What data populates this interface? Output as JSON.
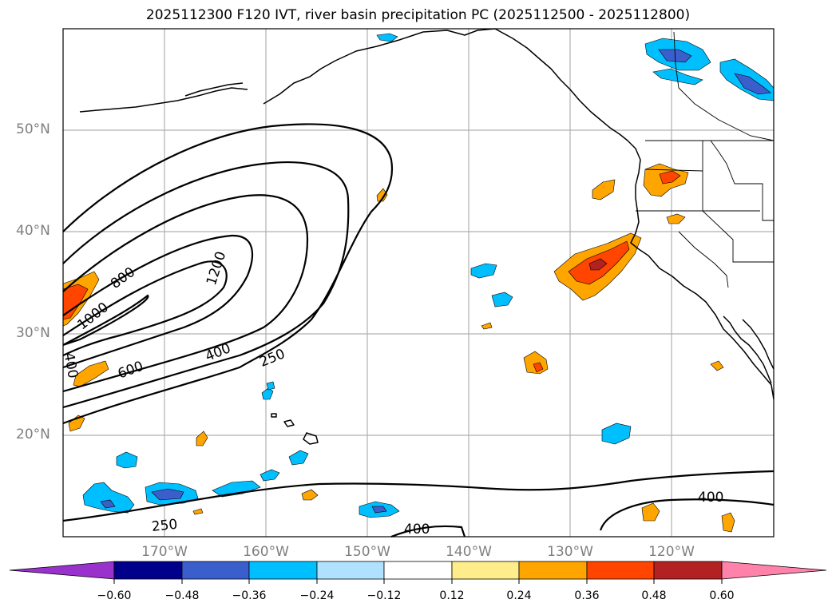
{
  "title": "2025112300 F120 IVT, river basin precipitation PC (2025112500 - 2025112800)",
  "map": {
    "projection": "cylindrical",
    "lon_range": [
      -180,
      -110
    ],
    "lat_range": [
      10,
      60
    ],
    "lat_labels": [
      "50°N",
      "40°N",
      "30°N",
      "20°N"
    ],
    "lon_labels": [
      "170°W",
      "160°W",
      "150°W",
      "140°W",
      "130°W",
      "120°W"
    ],
    "ivt_contour_labels": [
      "1200",
      "1000",
      "800",
      "600",
      "400",
      "250",
      "400",
      "250",
      "400",
      "400"
    ],
    "ivt_contour_levels": [
      250,
      400,
      600,
      800,
      1000,
      1200
    ],
    "gridlines": true
  },
  "colorbar": {
    "tick_labels": [
      "−0.60",
      "−0.48",
      "−0.36",
      "−0.24",
      "−0.12",
      "0.12",
      "0.24",
      "0.36",
      "0.48",
      "0.60"
    ],
    "colors": [
      "#9932cc",
      "#00008b",
      "#3a5fcd",
      "#00bfff",
      "#b0e2ff",
      "#ffffff",
      "#ffec8b",
      "#ffa500",
      "#ff4500",
      "#b22222",
      "#ff82ab"
    ],
    "extend": "both"
  }
}
